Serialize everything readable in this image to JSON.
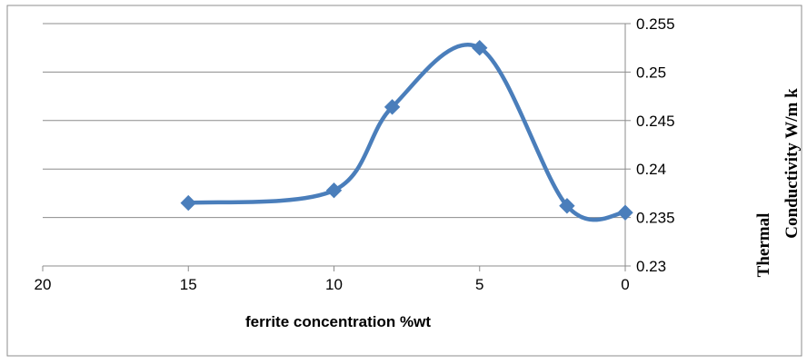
{
  "chart_data": {
    "type": "line",
    "smooth": true,
    "title": "",
    "xlabel": "ferrite concentration %wt",
    "ylabel_lines": [
      "Thermal",
      "Conductivity W/m k"
    ],
    "x_reversed": true,
    "xlim": [
      0,
      20
    ],
    "ylim": [
      0.23,
      0.255
    ],
    "y_axis_position": "right",
    "x_ticks": [
      "20",
      "15",
      "10",
      "5",
      "0"
    ],
    "x_tick_values": [
      20,
      15,
      10,
      5,
      0
    ],
    "y_ticks": [
      "0.23",
      "0.235",
      "0.24",
      "0.245",
      "0.25",
      "0.255"
    ],
    "y_tick_values": [
      0.23,
      0.235,
      0.24,
      0.245,
      0.25,
      0.255
    ],
    "grid": true,
    "legend": false,
    "series": [
      {
        "marker": "diamond",
        "color": "#4a7ebb",
        "x": [
          15,
          10,
          8,
          5,
          2,
          0
        ],
        "y": [
          0.2365,
          0.2378,
          0.2464,
          0.2525,
          0.2362,
          0.2355
        ]
      }
    ]
  }
}
